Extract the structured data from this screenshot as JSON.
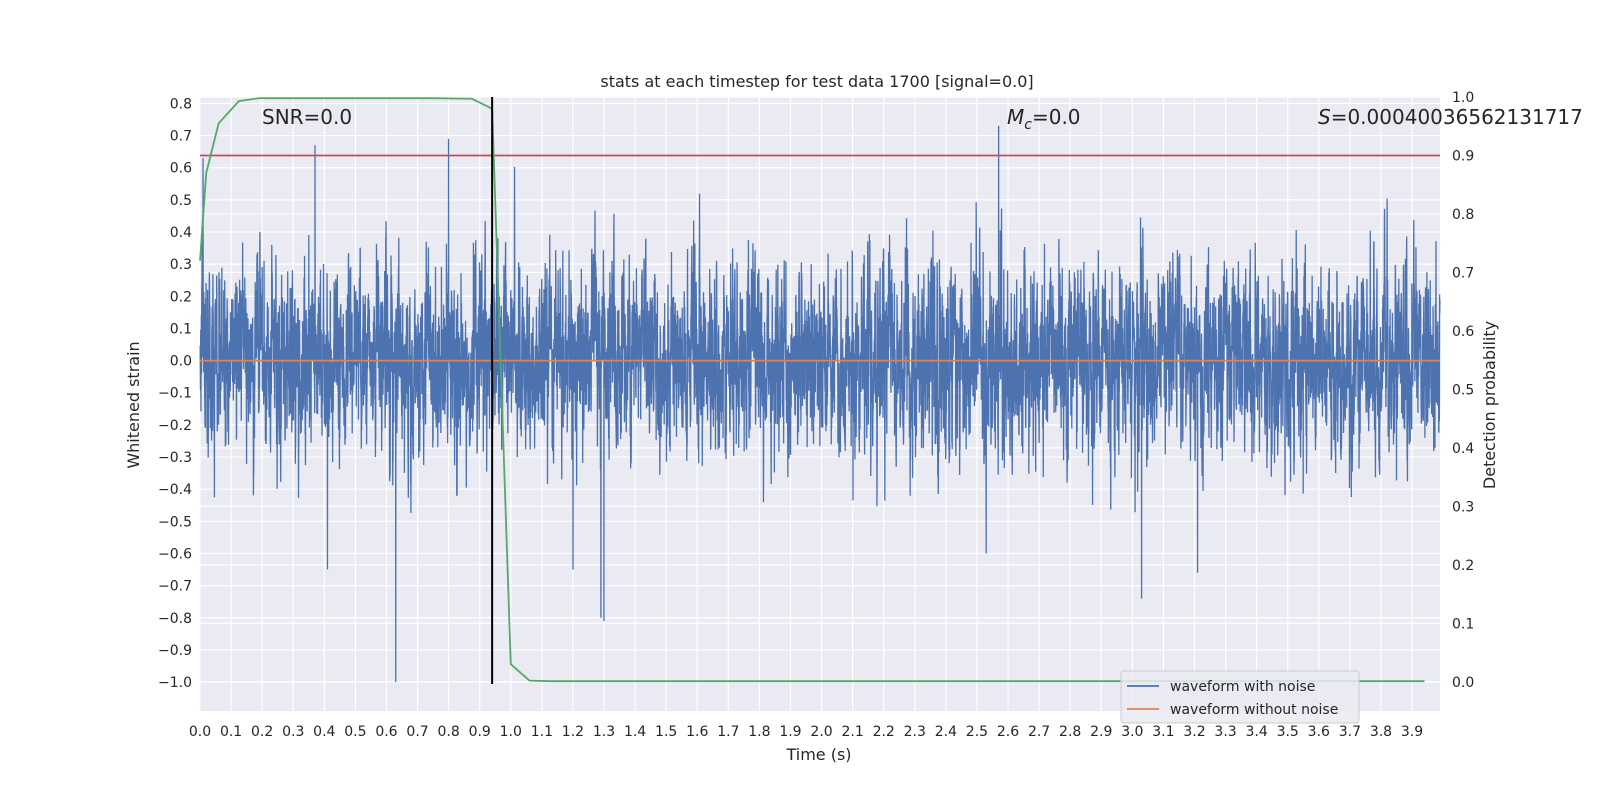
{
  "chart_data": {
    "type": "line",
    "title": "stats at each timestep for test data 1700 [signal=0.0]",
    "xlabel": "Time (s)",
    "ylabel": "Whitened strain",
    "y2label": "Detection probability",
    "xlim": [
      0.0,
      3.99
    ],
    "ylim": [
      -1.09,
      0.82
    ],
    "y2lim": [
      -0.05,
      1.0
    ],
    "x_ticks": [
      0.0,
      0.1,
      0.2,
      0.3,
      0.4,
      0.5,
      0.6,
      0.7,
      0.8,
      0.9,
      1.0,
      1.1,
      1.2,
      1.3,
      1.4,
      1.5,
      1.6,
      1.7,
      1.8,
      1.9,
      2.0,
      2.1,
      2.2,
      2.3,
      2.4,
      2.5,
      2.6,
      2.7,
      2.8,
      2.9,
      3.0,
      3.1,
      3.2,
      3.3,
      3.4,
      3.5,
      3.6,
      3.7,
      3.8,
      3.9
    ],
    "y_ticks": [
      0.8,
      0.7,
      0.6,
      0.5,
      0.4,
      0.3,
      0.2,
      0.1,
      0.0,
      -0.1,
      -0.2,
      -0.3,
      -0.4,
      -0.5,
      -0.6,
      -0.7,
      -0.8,
      -0.9,
      -1.0
    ],
    "y2_ticks": [
      1.0,
      0.9,
      0.8,
      0.7,
      0.6,
      0.5,
      0.4,
      0.3,
      0.2,
      0.1,
      0.0
    ],
    "series": [
      {
        "name": "waveform with noise",
        "color": "#4c72b0",
        "axis": "left",
        "sample_rate_hz": 2048,
        "noise_std": 0.2,
        "values_note": "dense whitened noise, amplitude roughly -1.0 to 0.73",
        "peaks": [
          [
            0.01,
            0.63
          ],
          [
            0.37,
            0.67
          ],
          [
            0.8,
            0.69
          ],
          [
            0.94,
            0.65
          ],
          [
            2.57,
            0.73
          ],
          [
            0.63,
            -1.0
          ],
          [
            1.29,
            -0.8
          ],
          [
            0.41,
            -0.65
          ],
          [
            3.03,
            -0.74
          ],
          [
            1.2,
            -0.65
          ],
          [
            3.21,
            -0.66
          ],
          [
            2.53,
            -0.6
          ],
          [
            1.3,
            -0.81
          ]
        ]
      },
      {
        "name": "waveform without noise",
        "color": "#dd8452",
        "axis": "left",
        "x": [
          0.0,
          3.99
        ],
        "values": [
          0.0,
          0.0
        ]
      },
      {
        "name": "",
        "color": "#55a868",
        "axis": "right",
        "x": [
          0.0,
          0.02,
          0.06,
          0.125,
          0.19,
          0.25,
          0.5,
          0.75,
          0.875,
          0.94,
          1.0,
          1.06,
          1.13,
          1.5,
          2.0,
          2.5,
          3.0,
          3.5,
          3.94
        ],
        "values": [
          0.72,
          0.87,
          0.955,
          0.993,
          0.998,
          0.998,
          0.998,
          0.998,
          0.997,
          0.98,
          0.03,
          0.002,
          0.001,
          0.001,
          0.001,
          0.001,
          0.001,
          0.001,
          0.001
        ]
      }
    ],
    "threshold_line": {
      "axis": "right",
      "value": 0.9,
      "color": "#c44e52"
    },
    "vertical_line": {
      "x": 0.94,
      "color": "#000000"
    },
    "annotations": [
      {
        "text": "SNR=0.0"
      },
      {
        "text": "Mc=0.0"
      },
      {
        "text": "S=0.00040036562131717"
      }
    ],
    "legend": {
      "placement": "lower-right",
      "entries": [
        {
          "label": "waveform with noise",
          "color": "#4c72b0"
        },
        {
          "label": "waveform without noise",
          "color": "#dd8452"
        }
      ]
    },
    "grid": true,
    "colors": {
      "background": "#eaeaf2",
      "grid": "#ffffff"
    }
  }
}
